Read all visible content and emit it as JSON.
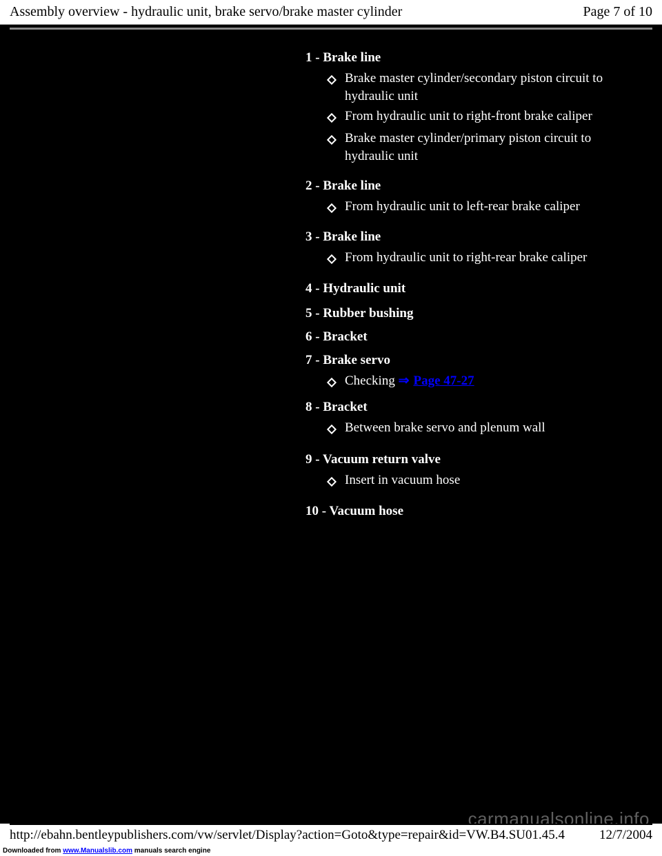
{
  "header": {
    "title": "Assembly overview - hydraulic unit, brake servo/brake master cylinder",
    "page_indicator": "Page 7 of 10"
  },
  "content": {
    "items": [
      {
        "number": "1",
        "label": "Brake line",
        "bullets": [
          "Brake master cylinder/secondary piston circuit to hydraulic unit",
          "From hydraulic unit to right-front brake caliper",
          "Brake master cylinder/primary piston circuit to hydraulic unit"
        ]
      },
      {
        "number": "2",
        "label": "Brake line",
        "bullets": [
          "From hydraulic unit to left-rear brake caliper"
        ]
      },
      {
        "number": "3",
        "label": "Brake line",
        "bullets": [
          "From hydraulic unit to right-rear brake caliper"
        ]
      },
      {
        "number": "4",
        "label": "Hydraulic unit",
        "bullets": []
      },
      {
        "number": "5",
        "label": "Rubber bushing",
        "bullets": []
      },
      {
        "number": "6",
        "label": "Bracket",
        "bullets": []
      },
      {
        "number": "7",
        "label": "Brake servo",
        "bullets": [],
        "link_prefix": "Checking ",
        "link_text": "Page 47-27"
      },
      {
        "number": "8",
        "label": "Bracket",
        "bullets": [
          "Between brake servo and plenum wall"
        ]
      },
      {
        "number": "9",
        "label": "Vacuum return valve",
        "bullets": [
          "Insert in vacuum hose"
        ]
      },
      {
        "number": "10",
        "label": "Vacuum hose",
        "bullets": []
      }
    ]
  },
  "footer": {
    "url": "http://ebahn.bentleypublishers.com/vw/servlet/Display?action=Goto&type=repair&id=VW.B4.SU01.45.4",
    "date": "12/7/2004"
  },
  "download": {
    "prefix": "Downloaded from ",
    "link": "www.Manualslib.com",
    "suffix": " manuals search engine"
  },
  "watermark": "carmanualsonline.info",
  "colors": {
    "background": "#000000",
    "text": "#ffffff",
    "header_bg": "#ffffff",
    "header_text": "#000000",
    "link": "#0000ff",
    "watermark": "#888888"
  }
}
